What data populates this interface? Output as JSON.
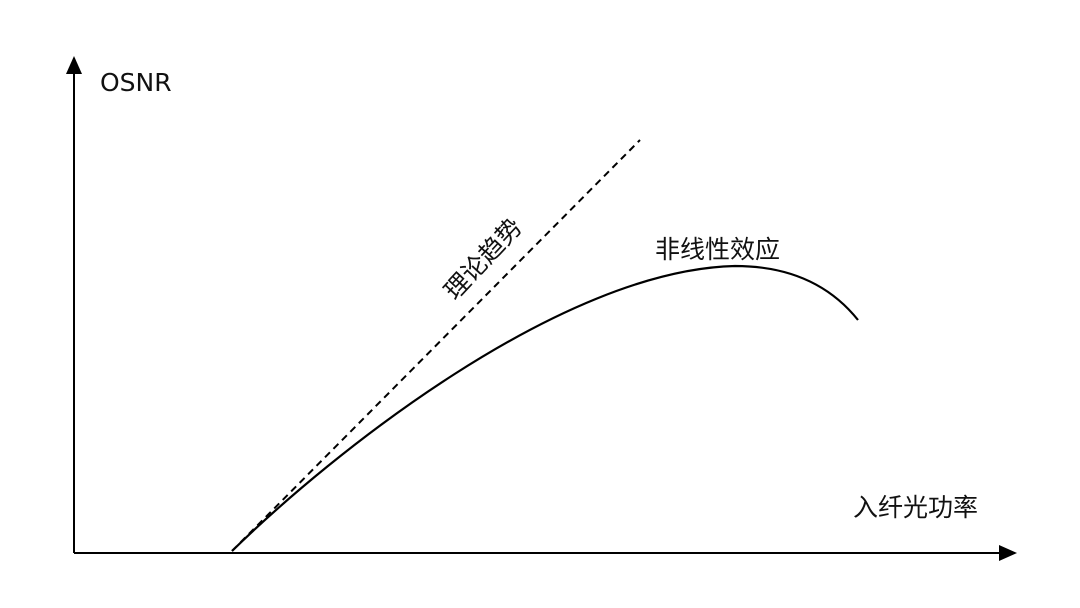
{
  "diagram": {
    "y_axis_label": "OSNR",
    "x_axis_label": "入纤光功率",
    "theory_label": "理论趋势",
    "nonlinear_label": "非线性效应",
    "line_color": "#000000"
  }
}
